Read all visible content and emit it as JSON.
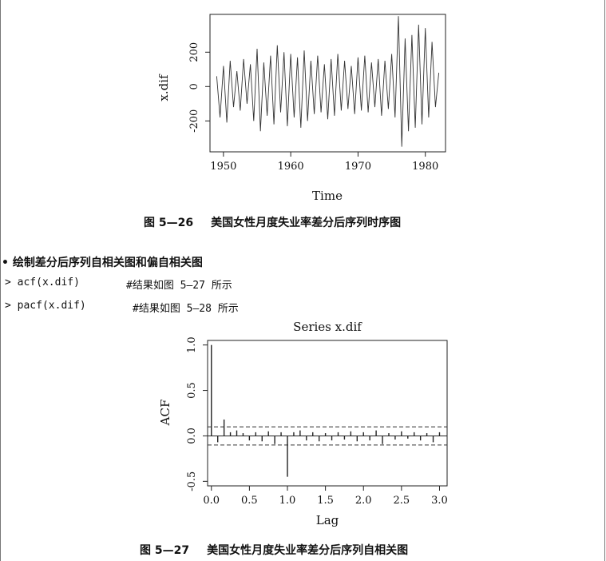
{
  "figure_26": {
    "caption_number": "图 5—26",
    "caption_text": "美国女性月度失业率差分后序列时序图",
    "ylabel": "x.dif",
    "xlabel": "Time",
    "yticks": [
      "-200",
      "0",
      "200"
    ],
    "xticks": [
      "1950",
      "1960",
      "1970",
      "1980"
    ]
  },
  "bullet": {
    "symbol": "•",
    "text": "绘制差分后序列自相关图和偏自相关图"
  },
  "code": [
    {
      "prompt": ">",
      "command": "acf(x.dif)",
      "comment": "#结果如图 5—27 所示"
    },
    {
      "prompt": ">",
      "command": "pacf(x.dif)",
      "comment": "#结果如图 5—28 所示"
    }
  ],
  "figure_27": {
    "caption_number": "图 5—27",
    "caption_text": "美国女性月度失业率差分后序列自相关图",
    "title": "Series x.dif",
    "ylabel": "ACF",
    "xlabel": "Lag",
    "yticks": [
      "-0.5",
      "0.0",
      "0.5",
      "1.0"
    ],
    "xticks": [
      "0.0",
      "0.5",
      "1.0",
      "1.5",
      "2.0",
      "2.5",
      "3.0"
    ]
  },
  "chart_data": [
    {
      "type": "line",
      "title": "",
      "xlabel": "Time",
      "ylabel": "x.dif",
      "xlim": [
        1948,
        1983
      ],
      "ylim": [
        -380,
        420
      ],
      "grid": false,
      "x": [
        1949,
        1949.5,
        1950,
        1950.5,
        1951,
        1951.5,
        1952,
        1952.5,
        1953,
        1953.5,
        1954,
        1954.5,
        1955,
        1955.5,
        1956,
        1956.5,
        1957,
        1957.5,
        1958,
        1958.5,
        1959,
        1959.5,
        1960,
        1960.5,
        1961,
        1961.5,
        1962,
        1962.5,
        1963,
        1963.5,
        1964,
        1964.5,
        1965,
        1965.5,
        1966,
        1966.5,
        1967,
        1967.5,
        1968,
        1968.5,
        1969,
        1969.5,
        1970,
        1970.5,
        1971,
        1971.5,
        1972,
        1972.5,
        1973,
        1973.5,
        1974,
        1974.5,
        1975,
        1975.5,
        1976,
        1976.5,
        1977,
        1977.5,
        1978,
        1978.5,
        1979,
        1979.5,
        1980,
        1980.5,
        1981,
        1981.5,
        1982
      ],
      "series": [
        {
          "values": [
            60,
            -180,
            120,
            -210,
            150,
            -120,
            90,
            -140,
            160,
            -100,
            130,
            -200,
            220,
            -260,
            140,
            -170,
            180,
            -220,
            240,
            -150,
            200,
            -230,
            190,
            -180,
            170,
            -240,
            210,
            -200,
            150,
            -160,
            180,
            -150,
            130,
            -190,
            160,
            -170,
            190,
            -140,
            150,
            -130,
            120,
            -160,
            170,
            -140,
            180,
            -150,
            140,
            -120,
            160,
            -170,
            150,
            -130,
            190,
            -180,
            410,
            -350,
            280,
            -260,
            300,
            -240,
            360,
            -220,
            340,
            -180,
            260,
            -120,
            80
          ]
        }
      ]
    },
    {
      "type": "bar",
      "title": "Series x.dif",
      "xlabel": "Lag",
      "ylabel": "ACF",
      "xlim": [
        -0.05,
        3.1
      ],
      "ylim": [
        -0.55,
        1.05
      ],
      "confidence_band": 0.1,
      "x": [
        0.0,
        0.0833,
        0.1667,
        0.25,
        0.3333,
        0.4167,
        0.5,
        0.5833,
        0.6667,
        0.75,
        0.8333,
        0.9167,
        1.0,
        1.0833,
        1.1667,
        1.25,
        1.3333,
        1.4167,
        1.5,
        1.5833,
        1.6667,
        1.75,
        1.8333,
        1.9167,
        2.0,
        2.0833,
        2.1667,
        2.25,
        2.3333,
        2.4167,
        2.5,
        2.5833,
        2.6667,
        2.75,
        2.8333,
        2.9167,
        3.0
      ],
      "values": [
        1.0,
        -0.07,
        0.18,
        0.04,
        0.06,
        0.03,
        -0.05,
        0.04,
        -0.06,
        0.05,
        -0.09,
        0.04,
        -0.45,
        0.04,
        0.06,
        -0.05,
        0.04,
        -0.06,
        0.03,
        -0.05,
        0.04,
        -0.04,
        0.05,
        -0.06,
        0.04,
        -0.05,
        0.06,
        -0.09,
        0.03,
        -0.04,
        0.05,
        -0.03,
        0.04,
        -0.05,
        0.03,
        -0.07,
        0.04
      ]
    }
  ]
}
